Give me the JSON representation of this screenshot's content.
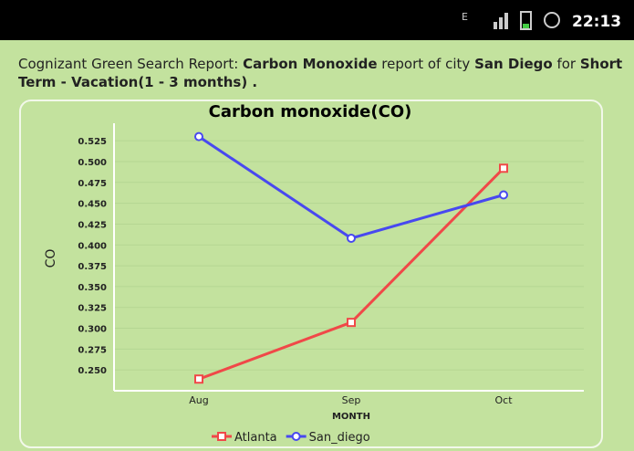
{
  "status_bar": {
    "time": "22:13"
  },
  "report": {
    "segments": [
      {
        "text": "Cognizant Green Search Report: ",
        "bold": false
      },
      {
        "text": "Carbon Monoxide",
        "bold": true
      },
      {
        "text": " report of city ",
        "bold": false
      },
      {
        "text": "San Diego",
        "bold": true
      },
      {
        "text": " for ",
        "bold": false
      },
      {
        "text": "Short Term - Vacation(1 - 3 months) .",
        "bold": true
      }
    ]
  },
  "chart_data": {
    "type": "line",
    "title": "Carbon monoxide(CO)",
    "x_label": "MONTH",
    "y_label": "CO",
    "categories": [
      "Aug",
      "Sep",
      "Oct"
    ],
    "series": [
      {
        "name": "Atlanta",
        "color": "#f04848",
        "values": [
          0.239,
          0.307,
          0.492
        ]
      },
      {
        "name": "San_diego",
        "color": "#4848f0",
        "values": [
          0.53,
          0.408,
          0.46
        ]
      }
    ],
    "ylim": [
      0.225,
      0.546
    ],
    "yticks": [
      {
        "value": 0.25,
        "label": "0.250"
      },
      0.275,
      {
        "value": 0.3,
        "label": "0.300"
      },
      0.325,
      {
        "value": 0.35,
        "label": "0.350"
      },
      0.375,
      {
        "value": 0.4,
        "label": "0.400"
      },
      0.425,
      {
        "value": 0.45,
        "label": "0.450"
      },
      0.475,
      {
        "value": 0.5,
        "label": "0.500"
      },
      0.525
    ],
    "grid": true
  }
}
